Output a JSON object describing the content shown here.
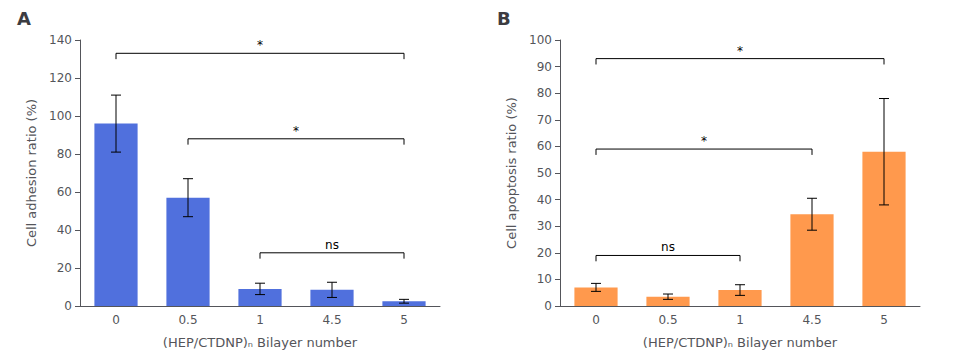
{
  "chart_data": [
    {
      "type": "bar",
      "title": "A",
      "categories": [
        "0",
        "0.5",
        "1",
        "4.5",
        "5"
      ],
      "values": [
        96,
        57,
        9,
        8.5,
        2.5
      ],
      "errors": [
        15,
        10,
        3,
        4,
        1
      ],
      "xlabel": "(HEP/CTDNP)ₙ Bilayer number",
      "ylabel": "Cell adhesion ratio (%)",
      "ylim": [
        0,
        140
      ],
      "yticks": [
        0,
        20,
        40,
        60,
        80,
        100,
        120,
        140
      ],
      "grid": false,
      "annotations": [
        {
          "from": "0",
          "to": "5",
          "y": 133,
          "label": "*"
        },
        {
          "from": "0.5",
          "to": "5",
          "y": 88,
          "label": "*"
        },
        {
          "from": "1",
          "to": "5",
          "y": 28,
          "label": "ns"
        }
      ]
    },
    {
      "type": "bar",
      "title": "B",
      "categories": [
        "0",
        "0.5",
        "1",
        "4.5",
        "5"
      ],
      "values": [
        7,
        3.5,
        6,
        34.5,
        58
      ],
      "errors": [
        1.5,
        1,
        2,
        6,
        20
      ],
      "xlabel": "(HEP/CTDNP)ₙ Bilayer number",
      "ylabel": "Cell apoptosis ratio (%)",
      "ylim": [
        0,
        100
      ],
      "yticks": [
        0,
        10,
        20,
        30,
        40,
        50,
        60,
        70,
        80,
        90,
        100
      ],
      "grid": false,
      "annotations": [
        {
          "from": "0",
          "to": "5",
          "y": 93,
          "label": "*"
        },
        {
          "from": "0",
          "to": "4.5",
          "y": 59,
          "label": "*"
        },
        {
          "from": "0",
          "to": "1",
          "y": 19,
          "label": "ns"
        }
      ]
    }
  ]
}
